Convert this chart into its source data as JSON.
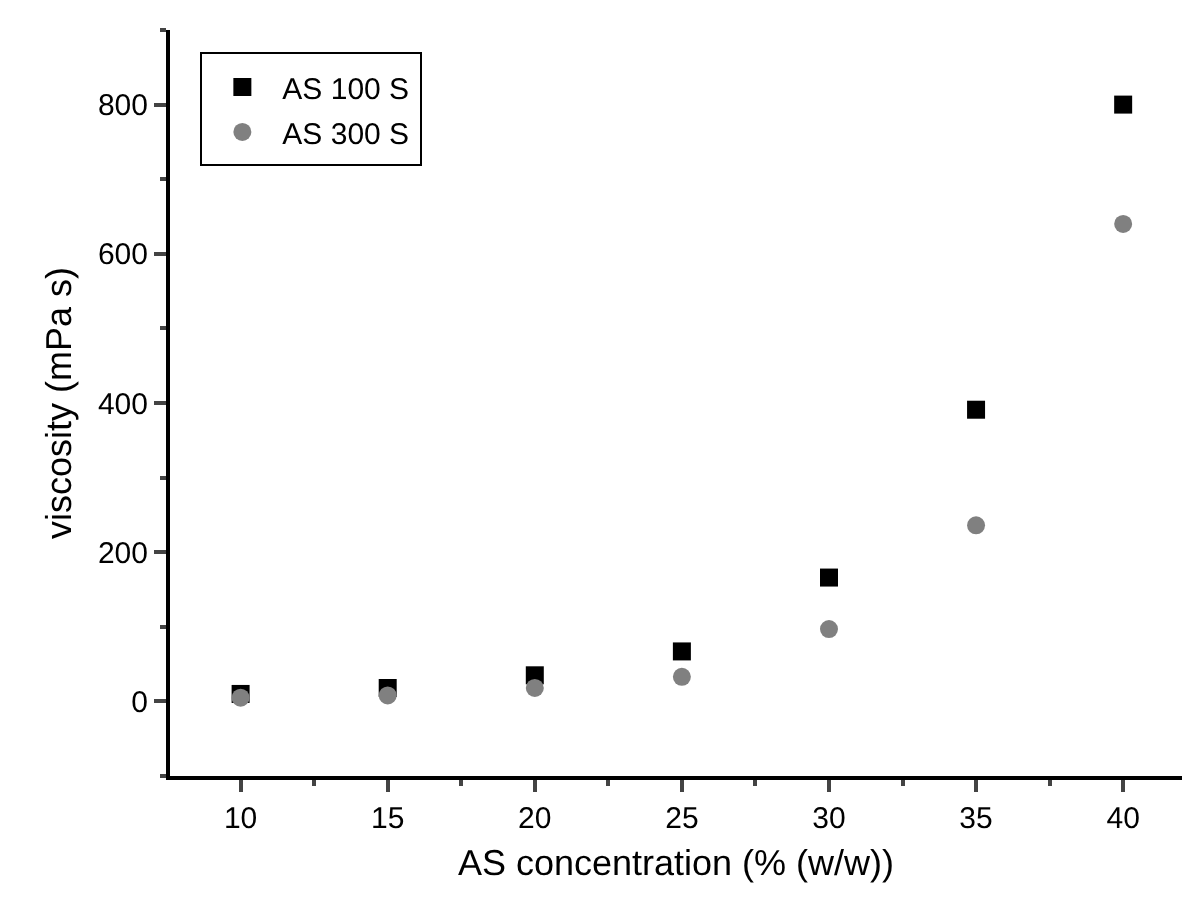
{
  "chart_data": {
    "type": "scatter",
    "xlabel": "AS concentration (% (w/w))",
    "ylabel": "viscosity (mPa s)",
    "x": [
      10,
      15,
      20,
      25,
      30,
      35,
      40
    ],
    "series": [
      {
        "name": "AS 100 S",
        "color": "#000000",
        "marker": "square",
        "values": [
          10,
          18,
          35,
          67,
          166,
          391,
          800
        ]
      },
      {
        "name": "AS 300 S",
        "color": "#808080",
        "marker": "circle",
        "values": [
          5,
          8,
          18,
          33,
          97,
          236,
          640
        ]
      }
    ],
    "xlim": [
      7.6,
      42
    ],
    "xticks": [
      10,
      15,
      20,
      25,
      30,
      35,
      40
    ],
    "ylim": [
      -100,
      900
    ],
    "yticks": [
      0,
      200,
      400,
      600,
      800
    ],
    "grid": false,
    "legend": "top left"
  }
}
